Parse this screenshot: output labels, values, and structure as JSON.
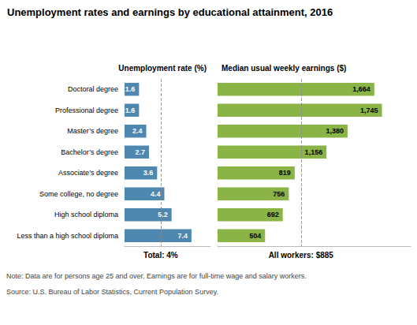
{
  "chart_data": [
    {
      "type": "bar",
      "orientation": "horizontal",
      "title": "Unemployment rates and earnings by educational attainment, 2016",
      "xlabel": "Unemployment rate (%)",
      "categories": [
        "Doctoral degree",
        "Professional degree",
        "Master’s degree",
        "Bachelor’s degree",
        "Associate’s degree",
        "Some college, no degree",
        "High school diploma",
        "Less than a high school diploma"
      ],
      "values": [
        1.6,
        1.6,
        2.4,
        2.7,
        3.6,
        4.4,
        5.2,
        7.4
      ],
      "color": "#4E88B0",
      "xlim": [
        0,
        9.5
      ],
      "data_labels": true,
      "tick_labels": "y",
      "grid": false,
      "annotations": [
        {
          "text": "Total: 4%",
          "x": 4.0
        },
        {
          "text": "Note: Data are for persons age 25 and over. Earnings are for full-time wage and salary workers."
        },
        {
          "text": "Source: U.S. Bureau of Labor Statistics, Current Population Survey."
        }
      ]
    },
    {
      "type": "bar",
      "orientation": "horizontal",
      "xlabel": "Median usual weekly earnings ($)",
      "categories": [
        "Doctoral degree",
        "Professional degree",
        "Master’s degree",
        "Bachelor’s degree",
        "Associate’s degree",
        "Some college, no degree",
        "High school diploma",
        "Less than a high school diploma"
      ],
      "values": [
        1664,
        1745,
        1380,
        1156,
        819,
        756,
        692,
        504
      ],
      "value_labels": [
        "1,664",
        "1,745",
        "1,380",
        "1,156",
        "819",
        "756",
        "692",
        "504"
      ],
      "color": "#8AB546",
      "xlim": [
        0,
        2050
      ],
      "data_labels": true,
      "tick_labels": false,
      "grid": false,
      "annotations": [
        {
          "text": "All workers: $885",
          "x": 885
        }
      ]
    }
  ]
}
